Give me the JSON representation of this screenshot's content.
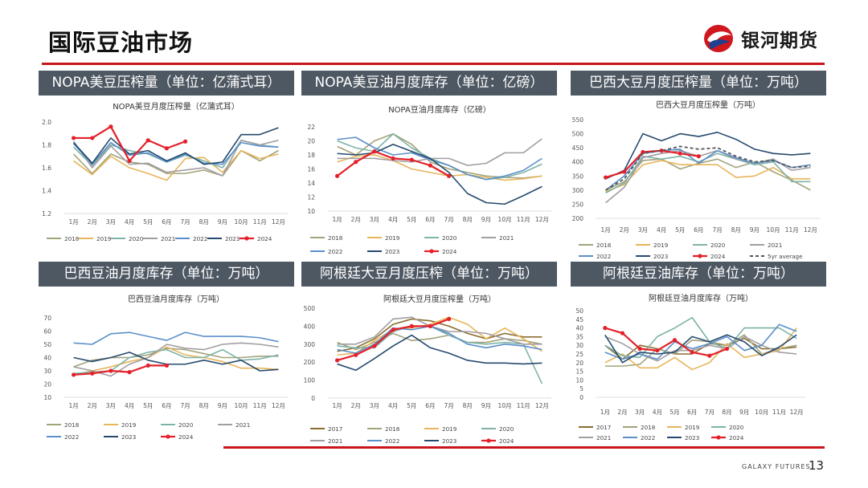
{
  "page": {
    "title": "国际豆油市场",
    "brand": "银河期货",
    "footer_brand": "GALAXY FUTURES",
    "page_number": "13"
  },
  "colors": {
    "accent": "#c8151b",
    "bar": "#4e5863",
    "series": {
      "2017": "#8a6d2e",
      "2018": "#a3a37a",
      "2019": "#e7b55a",
      "2020": "#7fb3a8",
      "2021": "#a29da2",
      "2022": "#5b8fc9",
      "2023": "#264a6e",
      "2024": "#e4202a",
      "5yr": "#555555"
    }
  },
  "panels": [
    {
      "label": "NOPA美豆压榨量（单位：亿蒲式耳）"
    },
    {
      "label": "NOPA美豆油月度库存（单位：亿磅）"
    },
    {
      "label": "巴西大豆月度压榨量（单位：万吨）"
    },
    {
      "label": "巴西豆油月度库存（单位：万吨）"
    },
    {
      "label": "阿根廷大豆月度压榨（单位：万吨）"
    },
    {
      "label": "阿根廷豆油库存（单位：万吨）"
    }
  ],
  "chart_data": [
    {
      "type": "line",
      "title": "NOPA美豆月度压榨量（亿蒲式耳）",
      "categories": [
        "1月",
        "2月",
        "3月",
        "4月",
        "5月",
        "6月",
        "7月",
        "8月",
        "9月",
        "10月",
        "11月",
        "12月"
      ],
      "ylim": [
        1.2,
        2.0
      ],
      "yticks": [
        "1.2",
        "1.4",
        "1.6",
        "1.8",
        "2.0"
      ],
      "legend_cols": 7,
      "series": [
        {
          "name": "2018",
          "values": [
            1.72,
            1.55,
            1.72,
            1.65,
            1.63,
            1.55,
            1.55,
            1.58,
            1.53,
            1.75,
            1.66,
            1.75
          ]
        },
        {
          "name": "2019",
          "values": [
            1.66,
            1.54,
            1.7,
            1.6,
            1.55,
            1.49,
            1.68,
            1.69,
            1.56,
            1.75,
            1.68,
            1.72
          ]
        },
        {
          "name": "2020",
          "values": [
            1.78,
            1.62,
            1.8,
            1.75,
            1.72,
            1.65,
            1.71,
            1.66,
            1.6,
            1.84,
            1.8,
            1.78
          ]
        },
        {
          "name": "2021",
          "values": [
            1.83,
            1.6,
            1.79,
            1.63,
            1.64,
            1.56,
            1.58,
            1.6,
            1.53,
            1.84,
            1.8,
            1.84
          ]
        },
        {
          "name": "2022",
          "values": [
            1.81,
            1.63,
            1.82,
            1.71,
            1.73,
            1.65,
            1.72,
            1.64,
            1.63,
            1.82,
            1.79,
            1.78
          ]
        },
        {
          "name": "2023",
          "values": [
            1.82,
            1.64,
            1.86,
            1.72,
            1.75,
            1.66,
            1.73,
            1.63,
            1.65,
            1.89,
            1.89,
            1.95
          ]
        },
        {
          "name": "2024",
          "values": [
            1.86,
            1.86,
            1.96,
            1.66,
            1.84,
            1.77,
            1.83,
            null,
            null,
            null,
            null,
            null
          ]
        }
      ]
    },
    {
      "type": "line",
      "title": "NOPA豆油月度库存（亿磅）",
      "categories": [
        "1月",
        "2月",
        "3月",
        "4月",
        "5月",
        "6月",
        "7月",
        "8月",
        "9月",
        "10月",
        "11月",
        "12月"
      ],
      "ylim": [
        10,
        22
      ],
      "yticks": [
        "10",
        "12",
        "14",
        "16",
        "18",
        "20",
        "22"
      ],
      "legend_cols": 4,
      "series": [
        {
          "name": "2018",
          "values": [
            19.2,
            18.0,
            20.0,
            21.0,
            19.5,
            17.0,
            16.0,
            15.5,
            15.0,
            14.8,
            14.7,
            15.0
          ]
        },
        {
          "name": "2019",
          "values": [
            17.0,
            17.8,
            18.0,
            17.2,
            16.0,
            15.5,
            15.0,
            15.2,
            14.8,
            14.4,
            14.6,
            15.0
          ]
        },
        {
          "name": "2020",
          "values": [
            20.0,
            19.0,
            18.5,
            21.0,
            19.0,
            17.5,
            16.5,
            15.2,
            14.5,
            14.8,
            15.5,
            16.7
          ]
        },
        {
          "name": "2021",
          "values": [
            17.5,
            17.5,
            17.5,
            17.2,
            17.0,
            17.5,
            17.5,
            16.5,
            16.8,
            18.3,
            18.3,
            20.3
          ]
        },
        {
          "name": "2022",
          "values": [
            20.2,
            20.5,
            19.0,
            18.0,
            18.3,
            17.3,
            16.5,
            15.2,
            14.5,
            15.0,
            15.8,
            17.5
          ]
        },
        {
          "name": "2023",
          "values": [
            18.2,
            18.0,
            18.3,
            19.5,
            18.5,
            17.5,
            15.5,
            12.5,
            11.2,
            11.0,
            12.2,
            13.5
          ]
        },
        {
          "name": "2024",
          "values": [
            15.0,
            17.0,
            18.5,
            17.5,
            17.3,
            16.5,
            15.0,
            null,
            null,
            null,
            null,
            null
          ]
        }
      ]
    },
    {
      "type": "line",
      "title": "巴西大豆月度压榨量（万吨）",
      "categories": [
        "1月",
        "2月",
        "3月",
        "4月",
        "5月",
        "6月",
        "7月",
        "8月",
        "9月",
        "10月",
        "11月",
        "12月"
      ],
      "ylim": [
        200,
        550
      ],
      "yticks": [
        "200",
        "250",
        "300",
        "350",
        "400",
        "450",
        "500",
        "550"
      ],
      "legend_cols": 4,
      "series": [
        {
          "name": "2018",
          "values": [
            300,
            330,
            405,
            410,
            375,
            395,
            410,
            380,
            400,
            365,
            335,
            300
          ]
        },
        {
          "name": "2019",
          "values": [
            295,
            320,
            390,
            405,
            390,
            390,
            390,
            345,
            350,
            380,
            340,
            340
          ]
        },
        {
          "name": "2020",
          "values": [
            290,
            325,
            420,
            410,
            420,
            400,
            430,
            410,
            390,
            400,
            330,
            330
          ]
        },
        {
          "name": "2021",
          "values": [
            255,
            310,
            415,
            430,
            440,
            420,
            440,
            410,
            395,
            410,
            370,
            380
          ]
        },
        {
          "name": "2022",
          "values": [
            300,
            350,
            430,
            440,
            445,
            395,
            440,
            415,
            395,
            405,
            380,
            390
          ]
        },
        {
          "name": "2023",
          "values": [
            340,
            370,
            500,
            475,
            500,
            490,
            505,
            480,
            445,
            430,
            425,
            430
          ]
        },
        {
          "name": "2024",
          "values": [
            345,
            365,
            435,
            440,
            430,
            420,
            null,
            null,
            null,
            null,
            null,
            null
          ]
        },
        {
          "name": "5yr average",
          "values": [
            300,
            340,
            430,
            440,
            455,
            445,
            450,
            420,
            400,
            405,
            380,
            385
          ]
        }
      ]
    },
    {
      "type": "line",
      "title": "巴西豆油月度库存（万吨）",
      "categories": [
        "1月",
        "2月",
        "3月",
        "4月",
        "5月",
        "6月",
        "7月",
        "8月",
        "9月",
        "10月",
        "11月",
        "12月"
      ],
      "ylim": [
        10,
        70
      ],
      "yticks": [
        "10",
        "20",
        "30",
        "40",
        "50",
        "60",
        "70"
      ],
      "legend_cols": 4,
      "series": [
        {
          "name": "2018",
          "values": [
            33,
            38,
            40,
            40,
            42,
            47,
            46,
            43,
            40,
            40,
            41,
            41
          ]
        },
        {
          "name": "2019",
          "values": [
            27,
            30,
            33,
            37,
            40,
            48,
            42,
            40,
            37,
            32,
            32,
            31
          ]
        },
        {
          "name": "2020",
          "values": [
            28,
            29,
            30,
            40,
            44,
            46,
            40,
            40,
            46,
            38,
            39,
            42
          ]
        },
        {
          "name": "2021",
          "values": [
            33,
            30,
            26,
            35,
            40,
            50,
            47,
            46,
            50,
            51,
            50,
            48
          ]
        },
        {
          "name": "2022",
          "values": [
            51,
            50,
            58,
            59,
            56,
            53,
            59,
            56,
            56,
            56,
            55,
            52
          ]
        },
        {
          "name": "2023",
          "values": [
            40,
            37,
            40,
            44,
            38,
            35,
            35,
            38,
            35,
            38,
            30,
            31
          ]
        },
        {
          "name": "2024",
          "values": [
            27,
            28,
            30,
            29,
            34,
            34,
            null,
            null,
            null,
            null,
            null,
            null
          ]
        }
      ]
    },
    {
      "type": "line",
      "title": "阿根廷大豆月度压榨量（万吨）",
      "categories": [
        "1月",
        "2月",
        "3月",
        "4月",
        "5月",
        "6月",
        "7月",
        "8月",
        "9月",
        "10月",
        "11月",
        "12月"
      ],
      "ylim": [
        0,
        500
      ],
      "yticks": [
        "0",
        "100",
        "200",
        "300",
        "400",
        "500"
      ],
      "legend_cols": 4,
      "series": [
        {
          "name": "2017",
          "values": [
            260,
            280,
            330,
            410,
            440,
            430,
            400,
            360,
            330,
            360,
            340,
            340
          ]
        },
        {
          "name": "2018",
          "values": [
            310,
            270,
            310,
            360,
            320,
            330,
            350,
            310,
            310,
            330,
            320,
            300
          ]
        },
        {
          "name": "2019",
          "values": [
            240,
            250,
            320,
            380,
            390,
            410,
            450,
            410,
            330,
            390,
            330,
            260
          ]
        },
        {
          "name": "2020",
          "values": [
            290,
            280,
            280,
            370,
            400,
            400,
            350,
            310,
            300,
            310,
            300,
            80
          ]
        },
        {
          "name": "2021",
          "values": [
            300,
            300,
            340,
            440,
            450,
            400,
            370,
            370,
            360,
            330,
            300,
            300
          ]
        },
        {
          "name": "2022",
          "values": [
            270,
            250,
            300,
            390,
            380,
            400,
            360,
            300,
            280,
            300,
            290,
            270
          ]
        },
        {
          "name": "2023",
          "values": [
            190,
            155,
            220,
            290,
            350,
            280,
            250,
            210,
            195,
            195,
            190,
            195
          ]
        },
        {
          "name": "2024",
          "values": [
            210,
            240,
            290,
            380,
            400,
            400,
            440,
            null,
            null,
            null,
            null,
            null
          ]
        }
      ]
    },
    {
      "type": "line",
      "title": "阿根廷豆油月度库存（万吨）",
      "categories": [
        "1月",
        "2月",
        "3月",
        "4月",
        "5月",
        "6月",
        "7月",
        "8月",
        "9月",
        "10月",
        "11月",
        "12月"
      ],
      "ylim": [
        0,
        50
      ],
      "yticks": [
        "0",
        "5",
        "10",
        "15",
        "20",
        "25",
        "30",
        "35",
        "40",
        "45",
        "50"
      ],
      "legend_cols": 4,
      "series": [
        {
          "name": "2017",
          "values": [
            30,
            22,
            30,
            28,
            25,
            25,
            31,
            30,
            34,
            28,
            28,
            29
          ]
        },
        {
          "name": "2018",
          "values": [
            18,
            18,
            19,
            28,
            25,
            33,
            32,
            30,
            36,
            25,
            28,
            30
          ]
        },
        {
          "name": "2019",
          "values": [
            20,
            25,
            17,
            17,
            23,
            16,
            20,
            31,
            23,
            25,
            27,
            40
          ]
        },
        {
          "name": "2020",
          "values": [
            30,
            24,
            23,
            35,
            40,
            46,
            32,
            28,
            40,
            40,
            40,
            34
          ]
        },
        {
          "name": "2021",
          "values": [
            35,
            31,
            25,
            21,
            27,
            27,
            30,
            28,
            35,
            30,
            26,
            25
          ]
        },
        {
          "name": "2022",
          "values": [
            26,
            22,
            25,
            22,
            32,
            28,
            31,
            35,
            27,
            30,
            42,
            38
          ]
        },
        {
          "name": "2023",
          "values": [
            36,
            20,
            26,
            25,
            26,
            35,
            32,
            36,
            32,
            24,
            29,
            36
          ]
        },
        {
          "name": "2024",
          "values": [
            40,
            37,
            28,
            27,
            33,
            26,
            24,
            28,
            null,
            null,
            null,
            null
          ]
        }
      ]
    }
  ]
}
